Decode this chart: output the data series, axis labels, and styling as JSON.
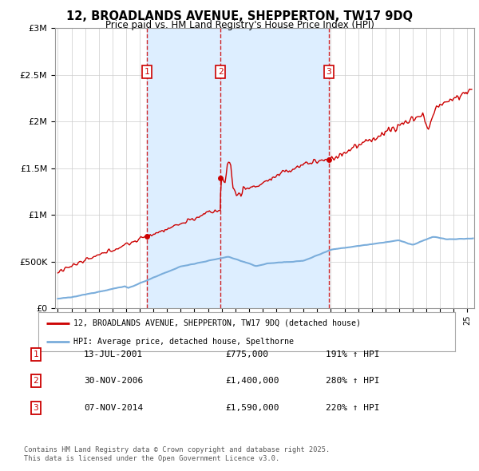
{
  "title": "12, BROADLANDS AVENUE, SHEPPERTON, TW17 9DQ",
  "subtitle": "Price paid vs. HM Land Registry's House Price Index (HPI)",
  "legend_line1": "12, BROADLANDS AVENUE, SHEPPERTON, TW17 9DQ (detached house)",
  "legend_line2": "HPI: Average price, detached house, Spelthorne",
  "transactions": [
    {
      "num": 1,
      "date": "13-JUL-2001",
      "x": 2001.54,
      "price": 775000,
      "hpi_pct": "191% ↑ HPI"
    },
    {
      "num": 2,
      "date": "30-NOV-2006",
      "x": 2006.92,
      "price": 1400000,
      "hpi_pct": "280% ↑ HPI"
    },
    {
      "num": 3,
      "date": "07-NOV-2014",
      "x": 2014.85,
      "price": 1590000,
      "hpi_pct": "220% ↑ HPI"
    }
  ],
  "footnote1": "Contains HM Land Registry data © Crown copyright and database right 2025.",
  "footnote2": "This data is licensed under the Open Government Licence v3.0.",
  "red_color": "#cc0000",
  "blue_color": "#7aaddb",
  "shade_color": "#ddeeff",
  "dashed_red": "#cc0000",
  "background_color": "#ffffff",
  "grid_color": "#cccccc",
  "ylim": [
    0,
    3000000
  ],
  "xlim_start": 1994.8,
  "xlim_end": 2025.5
}
